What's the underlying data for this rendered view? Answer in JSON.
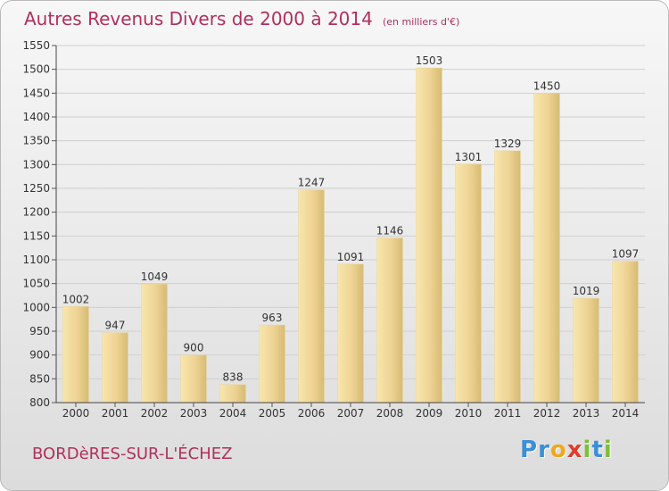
{
  "header": {
    "title": "Autres Revenus Divers de 2000 à 2014",
    "subtitle": "(en milliers d'€)"
  },
  "footer": {
    "commune": "BORDèRES-SUR-L'ÉCHEZ",
    "logo_letters": [
      "P",
      "r",
      "o",
      "x",
      "i",
      "t",
      "i"
    ],
    "logo_colors": [
      "#3a8fd8",
      "#3a8fd8",
      "#f0a81f",
      "#e23d2a",
      "#7dbf3a",
      "#3a8fd8",
      "#7dbf3a"
    ]
  },
  "colors": {
    "title": "#b0305a",
    "bar_light": "#f6e0a0",
    "bar_dark": "#d8bd75",
    "grid": "#cfcfcf"
  },
  "chart_data": {
    "type": "bar",
    "title": "Autres Revenus Divers de 2000 à 2014",
    "subtitle": "(en milliers d'€)",
    "categories": [
      "2000",
      "2001",
      "2002",
      "2003",
      "2004",
      "2005",
      "2006",
      "2007",
      "2008",
      "2009",
      "2010",
      "2011",
      "2012",
      "2013",
      "2014"
    ],
    "values": [
      1002,
      947,
      1049,
      900,
      838,
      963,
      1247,
      1091,
      1146,
      1503,
      1301,
      1329,
      1450,
      1019,
      1097
    ],
    "ylim": [
      800,
      1550
    ],
    "yticks": [
      800,
      850,
      900,
      950,
      1000,
      1050,
      1100,
      1150,
      1200,
      1250,
      1300,
      1350,
      1400,
      1450,
      1500,
      1550
    ],
    "grid": true,
    "xlabel": "",
    "ylabel": ""
  }
}
